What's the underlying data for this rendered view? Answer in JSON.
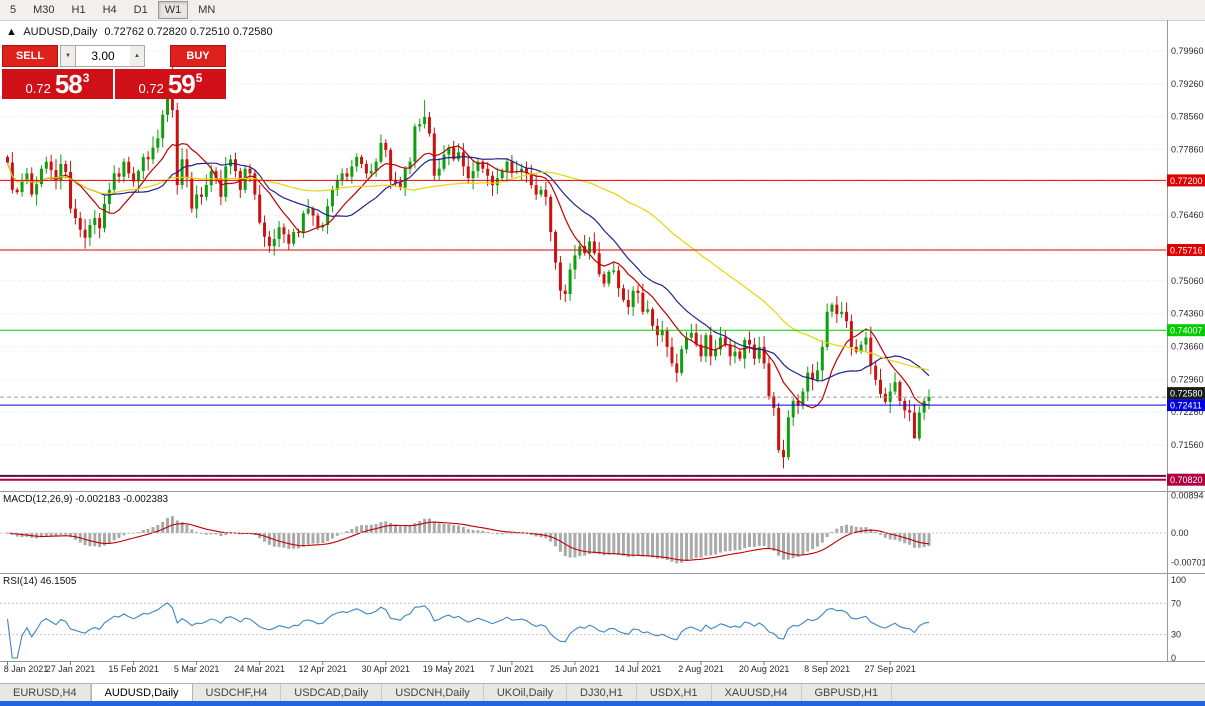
{
  "toolbar": {
    "timeframes": [
      {
        "label": "5",
        "active": false
      },
      {
        "label": "M30",
        "active": false
      },
      {
        "label": "H1",
        "active": false
      },
      {
        "label": "H4",
        "active": false
      },
      {
        "label": "D1",
        "active": false
      },
      {
        "label": "W1",
        "active": true
      },
      {
        "label": "MN",
        "active": false
      }
    ]
  },
  "chart_header": {
    "arrow": "▲",
    "symbol": "AUDUSD,Daily",
    "ohlc": "0.72762 0.72820 0.72510 0.72580"
  },
  "trade_panel": {
    "sell_label": "SELL",
    "buy_label": "BUY",
    "lot_value": "3.00",
    "lot_down_glyph": "▼",
    "lot_up_glyph": "▲",
    "sell_price": {
      "small": "0.72",
      "big": "58",
      "sup": "3"
    },
    "buy_price": {
      "small": "0.72",
      "big": "59",
      "sup": "5"
    }
  },
  "tabs": [
    {
      "label": "EURUSD,H4",
      "active": false
    },
    {
      "label": "AUDUSD,Daily",
      "active": true
    },
    {
      "label": "USDCHF,H4",
      "active": false
    },
    {
      "label": "USDCAD,Daily",
      "active": false
    },
    {
      "label": "USDCNH,Daily",
      "active": false
    },
    {
      "label": "UKOil,Daily",
      "active": false
    },
    {
      "label": "DJ30,H1",
      "active": false
    },
    {
      "label": "USDX,H1",
      "active": false
    },
    {
      "label": "XAUUSD,H4",
      "active": false
    },
    {
      "label": "GBPUSD,H1",
      "active": false
    }
  ],
  "chart_data": {
    "type": "candlestick",
    "symbol": "AUDUSD",
    "timeframe": "Daily",
    "y_axis": [
      "0.79960",
      "0.79260",
      "0.78560",
      "0.77860",
      "0.77160",
      "0.76460",
      "0.75760",
      "0.75060",
      "0.74360",
      "0.73660",
      "0.72960",
      "0.72260",
      "0.71560",
      "0.70860"
    ],
    "x_axis": [
      {
        "label": "8 Jan 2021",
        "i": 0
      },
      {
        "label": "27 Jan 2021",
        "i": 13
      },
      {
        "label": "15 Feb 2021",
        "i": 26
      },
      {
        "label": "5 Mar 2021",
        "i": 39
      },
      {
        "label": "24 Mar 2021",
        "i": 52
      },
      {
        "label": "12 Apr 2021",
        "i": 65
      },
      {
        "label": "30 Apr 2021",
        "i": 78
      },
      {
        "label": "19 May 2021",
        "i": 91
      },
      {
        "label": "7 Jun 2021",
        "i": 104
      },
      {
        "label": "25 Jun 2021",
        "i": 117
      },
      {
        "label": "14 Jul 2021",
        "i": 130
      },
      {
        "label": "2 Aug 2021",
        "i": 143
      },
      {
        "label": "20 Aug 2021",
        "i": 156
      },
      {
        "label": "8 Sep 2021",
        "i": 169
      },
      {
        "label": "27 Sep 2021",
        "i": 182
      }
    ],
    "hlines": [
      {
        "price": 0.772,
        "color": "#e00000",
        "width": 1,
        "label": "0.77200"
      },
      {
        "price": 0.75716,
        "color": "#e00000",
        "width": 1,
        "label": "0.75716"
      },
      {
        "price": 0.74007,
        "color": "#00cc00",
        "width": 1,
        "label": "0.74007"
      },
      {
        "price": 0.7258,
        "color": "#999999",
        "width": 1,
        "dash": true,
        "label": "0.72580",
        "badge_color": "#1c1c1c",
        "badge_dy": -4
      },
      {
        "price": 0.72411,
        "color": "#0000dd",
        "width": 1,
        "label": "0.72411"
      },
      {
        "price": 0.709,
        "color": "#5a0f3c",
        "width": 2
      },
      {
        "price": 0.7082,
        "color": "#b00040",
        "width": 2,
        "label": "0.70820"
      }
    ],
    "candles": {
      "up_color": "#0f9e0f",
      "down_color": "#cc1111",
      "first_open": 0.777,
      "closes": [
        0.7758,
        0.77,
        0.7695,
        0.772,
        0.7735,
        0.769,
        0.7712,
        0.7745,
        0.776,
        0.7742,
        0.772,
        0.7755,
        0.7738,
        0.766,
        0.764,
        0.7615,
        0.7598,
        0.7625,
        0.764,
        0.7618,
        0.767,
        0.77,
        0.7735,
        0.7728,
        0.776,
        0.7735,
        0.7718,
        0.774,
        0.777,
        0.7765,
        0.779,
        0.781,
        0.786,
        0.7905,
        0.787,
        0.771,
        0.7765,
        0.7725,
        0.766,
        0.769,
        0.7685,
        0.771,
        0.774,
        0.7725,
        0.7685,
        0.775,
        0.7765,
        0.774,
        0.77,
        0.7745,
        0.7735,
        0.769,
        0.763,
        0.76,
        0.758,
        0.7595,
        0.762,
        0.7605,
        0.7585,
        0.761,
        0.7608,
        0.765,
        0.766,
        0.7645,
        0.762,
        0.7625,
        0.7665,
        0.77,
        0.772,
        0.7735,
        0.7728,
        0.775,
        0.777,
        0.7755,
        0.7735,
        0.774,
        0.776,
        0.78,
        0.7785,
        0.772,
        0.7715,
        0.7705,
        0.7745,
        0.776,
        0.7835,
        0.784,
        0.7855,
        0.782,
        0.773,
        0.7745,
        0.7775,
        0.779,
        0.7765,
        0.778,
        0.775,
        0.7725,
        0.774,
        0.776,
        0.7745,
        0.773,
        0.771,
        0.7725,
        0.774,
        0.776,
        0.7738,
        0.774,
        0.7745,
        0.7735,
        0.771,
        0.769,
        0.77,
        0.7685,
        0.761,
        0.7545,
        0.7485,
        0.7478,
        0.753,
        0.756,
        0.758,
        0.7565,
        0.759,
        0.7565,
        0.752,
        0.75,
        0.7525,
        0.7528,
        0.749,
        0.7465,
        0.745,
        0.7485,
        0.748,
        0.744,
        0.7445,
        0.741,
        0.739,
        0.74,
        0.7365,
        0.733,
        0.731,
        0.736,
        0.7385,
        0.7395,
        0.737,
        0.7345,
        0.739,
        0.7345,
        0.736,
        0.7385,
        0.737,
        0.7345,
        0.7355,
        0.734,
        0.738,
        0.737,
        0.734,
        0.7365,
        0.733,
        0.726,
        0.7235,
        0.7145,
        0.713,
        0.7215,
        0.725,
        0.724,
        0.727,
        0.731,
        0.7295,
        0.7315,
        0.7365,
        0.744,
        0.7455,
        0.7435,
        0.744,
        0.742,
        0.7365,
        0.7355,
        0.737,
        0.7385,
        0.7325,
        0.7295,
        0.7265,
        0.7248,
        0.727,
        0.729,
        0.725,
        0.723,
        0.7225,
        0.717,
        0.7225,
        0.725,
        0.7258
      ],
      "extremes": [
        {
          "i": 33,
          "high": 0.792
        },
        {
          "i": 34,
          "high": 0.7995
        },
        {
          "i": 35,
          "low": 0.769
        },
        {
          "i": 86,
          "high": 0.7891
        },
        {
          "i": 112,
          "low": 0.759
        },
        {
          "i": 113,
          "low": 0.753
        },
        {
          "i": 138,
          "low": 0.729
        },
        {
          "i": 160,
          "low": 0.7106
        },
        {
          "i": 187,
          "low": 0.717
        }
      ]
    },
    "moving_averages": [
      {
        "period": 10,
        "color": "#c00000"
      },
      {
        "period": 20,
        "color": "#22228c"
      },
      {
        "period": 50,
        "color": "#e8d40a"
      }
    ],
    "macd": {
      "label": "MACD(12,26,9) -0.002183 -0.002383",
      "fast": 12,
      "slow": 26,
      "signal": 9,
      "hist_color": "#aaaaaa",
      "signal_color": "#c00000",
      "axis": [
        {
          "label": "0.00894",
          "value": 0.00894
        },
        {
          "label": "0.00",
          "value": 0
        },
        {
          "label": "-0.00701",
          "value": -0.00701
        }
      ]
    },
    "rsi": {
      "label": "RSI(14) 46.1505",
      "period": 14,
      "color": "#3d85c6",
      "levels": [
        70,
        30
      ],
      "axis": [
        {
          "label": "100",
          "value": 100
        },
        {
          "label": "70",
          "value": 70
        },
        {
          "label": "30",
          "value": 30
        },
        {
          "label": "0",
          "value": 0
        }
      ]
    }
  }
}
